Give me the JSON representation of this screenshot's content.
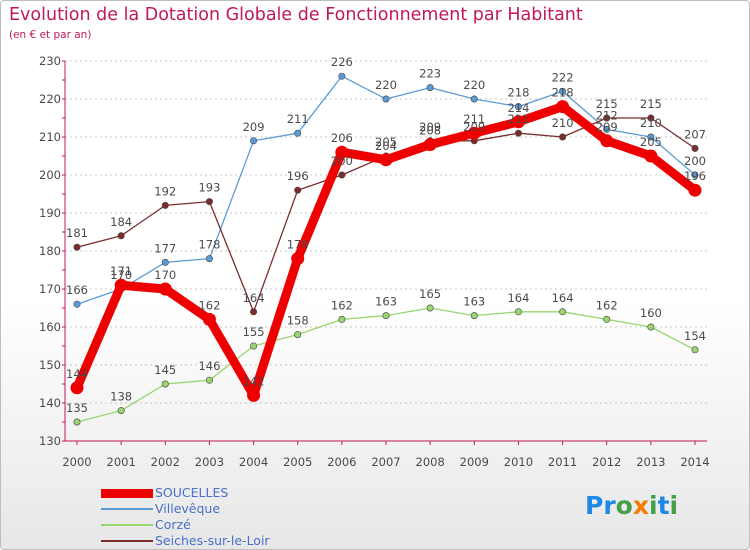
{
  "title": "Evolution de la Dotation Globale de Fonctionnement par Habitant",
  "subtitle": "(en € et par an)",
  "logo": {
    "letters": [
      {
        "ch": "P",
        "color": "#1e88e5"
      },
      {
        "ch": "r",
        "color": "#1e88e5"
      },
      {
        "ch": "o",
        "color": "#43a047"
      },
      {
        "ch": "x",
        "color": "#f57c00"
      },
      {
        "ch": "i",
        "color": "#43a047"
      },
      {
        "ch": "t",
        "color": "#1e88e5"
      },
      {
        "ch": "i",
        "color": "#43a047"
      }
    ]
  },
  "colors": {
    "axis": "#c2185b",
    "grid": "#c8c8c8",
    "text": "#4a4a4a",
    "legend_text": "#4a6fc9"
  },
  "chart_data": {
    "type": "line",
    "title": "Evolution de la Dotation Globale de Fonctionnement par Habitant",
    "subtitle": "(en € et par an)",
    "xlabel": "",
    "ylabel": "",
    "x": [
      "2000",
      "2001",
      "2002",
      "2003",
      "2004",
      "2005",
      "2006",
      "2007",
      "2008",
      "2009",
      "2010",
      "2011",
      "2012",
      "2013",
      "2014"
    ],
    "ylim": [
      130,
      230
    ],
    "yticks": [
      130,
      140,
      150,
      160,
      170,
      180,
      190,
      200,
      210,
      220,
      230
    ],
    "grid": "horizontal-dashed",
    "legend_position": "bottom-left",
    "series": [
      {
        "name": "SOUCELLES",
        "color": "#ee0000",
        "values": [
          144,
          171,
          170,
          162,
          142,
          178,
          206,
          204,
          208,
          211,
          214,
          218,
          209,
          205,
          196
        ]
      },
      {
        "name": "Villevêque",
        "color": "#5b9bd5",
        "values": [
          166,
          170,
          177,
          178,
          209,
          211,
          226,
          220,
          223,
          220,
          218,
          222,
          212,
          210,
          200
        ]
      },
      {
        "name": "Corzé",
        "color": "#99d56f",
        "values": [
          135,
          138,
          145,
          146,
          155,
          158,
          162,
          163,
          165,
          163,
          164,
          164,
          162,
          160,
          154
        ]
      },
      {
        "name": "Seiches-sur-le-Loir",
        "color": "#7b2d2d",
        "values": [
          181,
          184,
          192,
          193,
          164,
          196,
          200,
          205,
          209,
          209,
          211,
          210,
          215,
          215,
          207
        ]
      }
    ]
  }
}
